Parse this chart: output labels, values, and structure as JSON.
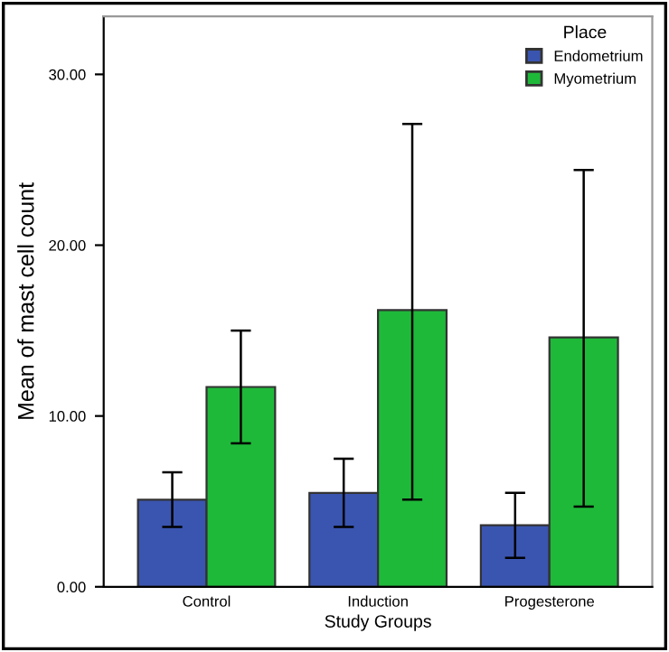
{
  "chart_data": {
    "type": "bar",
    "xlabel": "Study Groups",
    "ylabel": "Mean of mast cell count",
    "legend_title": "Place",
    "legend": "top right",
    "categories": [
      "Control",
      "Induction",
      "Progesterone"
    ],
    "series": [
      {
        "name": "Endometrium",
        "color": "#3a55b0",
        "values": [
          5.1,
          5.5,
          3.6
        ],
        "errors": [
          [
            3.5,
            6.7
          ],
          [
            3.5,
            7.5
          ],
          [
            1.7,
            5.5
          ]
        ]
      },
      {
        "name": "Myometrium",
        "color": "#1fb93a",
        "values": [
          11.7,
          16.2,
          14.6
        ],
        "errors": [
          [
            8.4,
            15.0
          ],
          [
            5.1,
            27.1
          ],
          [
            4.7,
            24.4
          ]
        ]
      }
    ],
    "ylim": [
      0,
      33.4
    ],
    "yticks": [
      {
        "value": 0,
        "label": "0.00"
      },
      {
        "value": 10,
        "label": "10.00"
      },
      {
        "value": 20,
        "label": "20.00"
      },
      {
        "value": 30,
        "label": "30.00"
      }
    ],
    "grid": false
  }
}
